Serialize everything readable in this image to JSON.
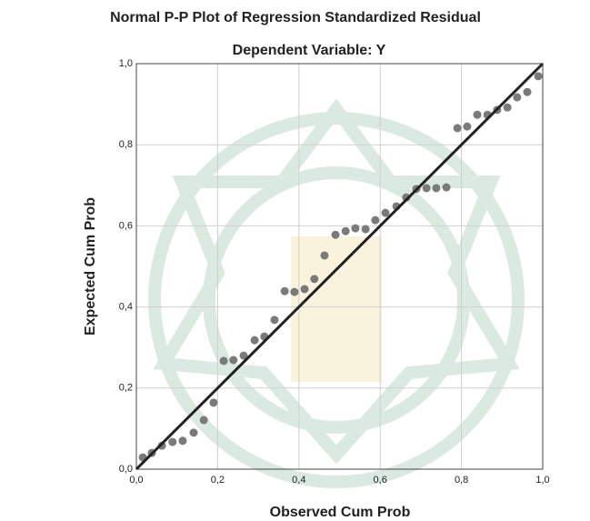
{
  "chart_data": {
    "type": "scatter",
    "title": "Normal P-P Plot of Regression Standardized Residual",
    "subtitle": "Dependent Variable: Y",
    "x_label": "Observed Cum Prob",
    "y_label": "Expected Cum Prob",
    "x": [
      0.016,
      0.038,
      0.063,
      0.089,
      0.114,
      0.141,
      0.166,
      0.19,
      0.215,
      0.239,
      0.264,
      0.291,
      0.315,
      0.34,
      0.365,
      0.389,
      0.414,
      0.438,
      0.463,
      0.49,
      0.515,
      0.539,
      0.564,
      0.588,
      0.613,
      0.64,
      0.664,
      0.689,
      0.714,
      0.738,
      0.763,
      0.79,
      0.814,
      0.839,
      0.864,
      0.888,
      0.913,
      0.937,
      0.962,
      0.989
    ],
    "values": [
      0.029,
      0.04,
      0.058,
      0.067,
      0.07,
      0.09,
      0.121,
      0.164,
      0.267,
      0.269,
      0.28,
      0.318,
      0.327,
      0.368,
      0.439,
      0.437,
      0.444,
      0.469,
      0.527,
      0.578,
      0.587,
      0.594,
      0.592,
      0.614,
      0.632,
      0.648,
      0.67,
      0.691,
      0.693,
      0.693,
      0.695,
      0.841,
      0.845,
      0.874,
      0.874,
      0.886,
      0.892,
      0.917,
      0.93,
      0.969
    ],
    "color": "#7a7a7a",
    "xlim": [
      0,
      1
    ],
    "ylim": [
      0,
      1
    ],
    "xticks": [
      {
        "value": 0,
        "label": "0,0"
      },
      {
        "value": 0.2,
        "label": "0,2"
      },
      {
        "value": 0.4,
        "label": "0,4"
      },
      {
        "value": 0.6,
        "label": "0,6"
      },
      {
        "value": 0.8,
        "label": "0,8"
      },
      {
        "value": 1,
        "label": "1,0"
      }
    ],
    "yticks": [
      {
        "value": 0,
        "label": "0,0"
      },
      {
        "value": 0.2,
        "label": "0,2"
      },
      {
        "value": 0.4,
        "label": "0,4"
      },
      {
        "value": 0.6,
        "label": "0,6"
      },
      {
        "value": 0.8,
        "label": "0,8"
      },
      {
        "value": 1,
        "label": "1,0"
      }
    ],
    "grid": true,
    "reference_line": true
  }
}
